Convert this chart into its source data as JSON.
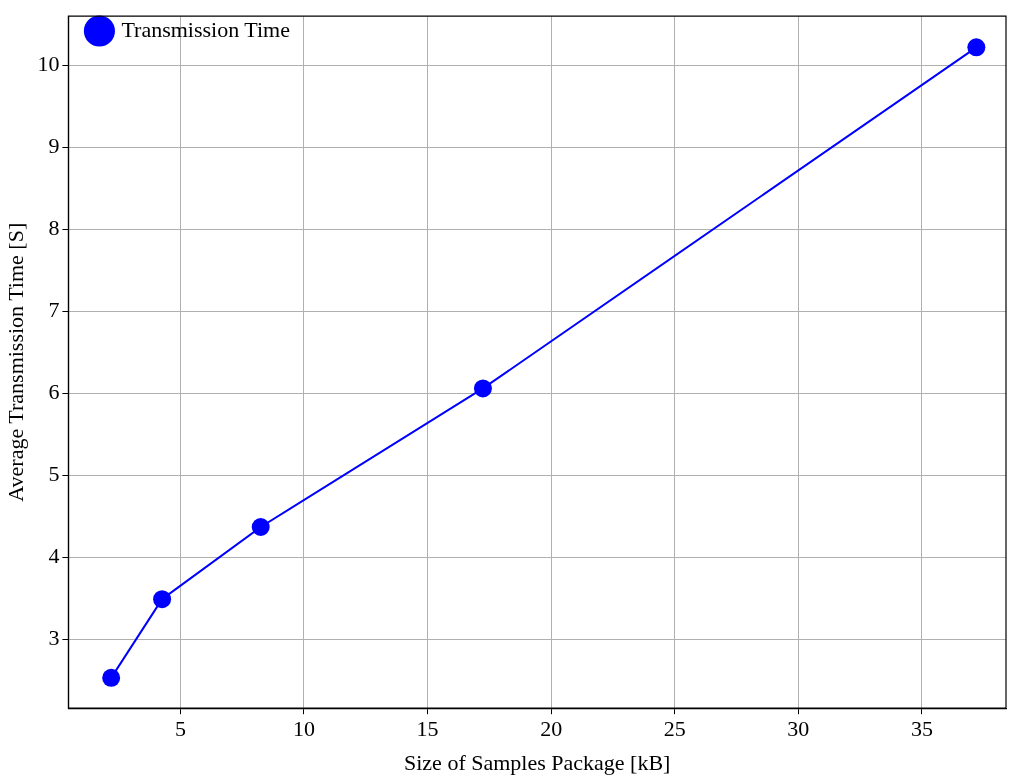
{
  "chart_data": {
    "type": "line",
    "xlabel": "Size of Samples Package [kB]",
    "ylabel": "Average Transmission Time [S]",
    "x": [
      2.2,
      4.26,
      8.25,
      17.24,
      37.2
    ],
    "series": [
      {
        "name": "Transmission Time",
        "color": "#0000ff",
        "values": [
          2.53,
          3.49,
          4.37,
          6.06,
          10.22
        ]
      }
    ],
    "xlim": [
      0.47,
      38.4
    ],
    "xticks": [
      5,
      10,
      15,
      20,
      25,
      30,
      35
    ],
    "ylim": [
      2.16,
      10.6
    ],
    "yticks": [
      3,
      4,
      5,
      6,
      7,
      8,
      9,
      10
    ],
    "grid": true,
    "legend": "top left",
    "marker": "circle",
    "line_style": "solid"
  }
}
